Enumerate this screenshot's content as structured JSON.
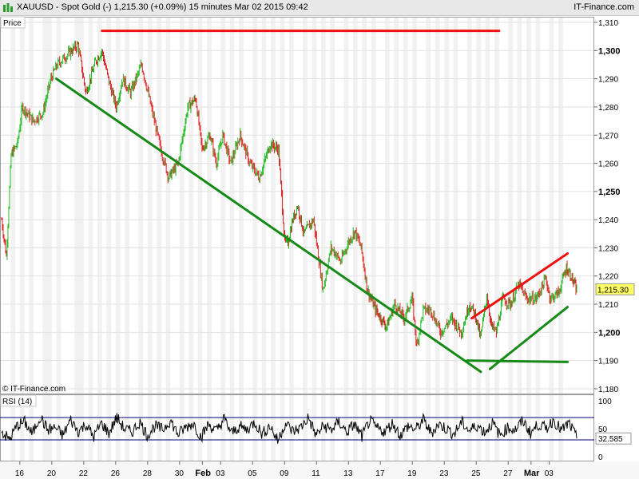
{
  "header": {
    "title": "XAUUSD - Spot Gold (-)    1,215.30 (+0.09%)    15 minutes  Mar 02 2015 09:42",
    "brand": "IT-Finance.com",
    "icon": "bar-chart-icon"
  },
  "colors": {
    "up": "#22bb22",
    "down": "#dd2222",
    "resistance": "#ee1111",
    "support": "#168a16",
    "last_price_badge": "#ffff66",
    "band_alt": "#f1f1f1",
    "rsi_line": "#000000",
    "rsi_level": "#000080"
  },
  "chart_data": [
    {
      "type": "line",
      "title": "XAUUSD - Spot Gold (-)",
      "panel_label": "Price",
      "timeframe": "15 minutes",
      "watermark": "© IT-Finance.com",
      "x_tick_labels": [
        "16",
        "20",
        "22",
        "26",
        "28",
        "30",
        "Feb",
        "03",
        "05",
        "09",
        "11",
        "13",
        "17",
        "19",
        "23",
        "25",
        "27",
        "Mar",
        "03"
      ],
      "ylim": [
        1178,
        1312
      ],
      "y_ticks": [
        1180,
        1190,
        1200,
        1210,
        1220,
        1230,
        1240,
        1250,
        1260,
        1270,
        1280,
        1290,
        1300,
        1310
      ],
      "y_tick_labels": [
        "1,180",
        "1,190",
        "1,200",
        "1,210",
        "1,220",
        "1,230",
        "1,240",
        "1,250",
        "1,260",
        "1,270",
        "1,280",
        "1,290",
        "1,300",
        "1,310"
      ],
      "bold_ticks": [
        "1,200",
        "1,250",
        "1,300"
      ],
      "last_price": 1215.3,
      "last_price_label": "1,215.30",
      "series": [
        {
          "style": "candlestick",
          "anchor_index": [
            0,
            6,
            12,
            20,
            26,
            40,
            52,
            62,
            70,
            88,
            96,
            106,
            118,
            126,
            134,
            144,
            152,
            162,
            176,
            188,
            200,
            210,
            222,
            234,
            244,
            252,
            262,
            270,
            278,
            288,
            300,
            312,
            324,
            338,
            348,
            356,
            360,
            366,
            372,
            380,
            392,
            404,
            414,
            420,
            426,
            436,
            444,
            452,
            460,
            470,
            484,
            494,
            506,
            516,
            522,
            530,
            540,
            552,
            566,
            578,
            588,
            596,
            602,
            610,
            616,
            622,
            630,
            640,
            650,
            660,
            672,
            684,
            690,
            700,
            710,
            716,
            722
          ],
          "anchor_close": [
            1240,
            1227,
            1263,
            1267,
            1280,
            1275,
            1278,
            1290,
            1295,
            1300,
            1302,
            1285,
            1296,
            1300,
            1290,
            1280,
            1290,
            1285,
            1295,
            1280,
            1265,
            1255,
            1260,
            1280,
            1283,
            1265,
            1270,
            1260,
            1270,
            1260,
            1270,
            1260,
            1255,
            1267,
            1265,
            1232,
            1232,
            1240,
            1245,
            1235,
            1240,
            1215,
            1230,
            1228,
            1225,
            1232,
            1236,
            1230,
            1215,
            1208,
            1202,
            1210,
            1205,
            1212,
            1195,
            1208,
            1208,
            1200,
            1205,
            1200,
            1210,
            1206,
            1198,
            1213,
            1202,
            1200,
            1212,
            1210,
            1217,
            1212,
            1212,
            1219,
            1212,
            1214,
            1223,
            1220,
            1215.3
          ]
        }
      ],
      "trendlines": [
        {
          "name": "resistance-top",
          "color": "resistance",
          "x": [
            22,
            109
          ],
          "y": [
            1307,
            1307
          ]
        },
        {
          "name": "downtrend",
          "color": "support",
          "x": [
            12,
            105
          ],
          "y": [
            1290,
            1186
          ]
        },
        {
          "name": "rising-resistance",
          "color": "resistance",
          "x": [
            103,
            124
          ],
          "y": [
            1205,
            1228
          ]
        },
        {
          "name": "rising-support",
          "color": "support",
          "x": [
            107,
            124
          ],
          "y": [
            1187,
            1209
          ]
        },
        {
          "name": "horizontal-support",
          "color": "support",
          "x": [
            102,
            124
          ],
          "y": [
            1190,
            1189.5
          ]
        }
      ]
    },
    {
      "type": "line",
      "title": "RSI (14)",
      "ylim": [
        0,
        100
      ],
      "y_tick_labels": [
        "100",
        "50",
        "0"
      ],
      "upper_level": 70,
      "lower_level": 30,
      "last_value": 32.585,
      "last_value_label": "32.585",
      "series": [
        {
          "name": "RSI (14)",
          "anchor_value": [
            45,
            30,
            55,
            62,
            40,
            72,
            48,
            52,
            38,
            66,
            45,
            58,
            35,
            60,
            42,
            70,
            50,
            44,
            62,
            38,
            55,
            48,
            65,
            40,
            52,
            60,
            35,
            58,
            45,
            68,
            42,
            54,
            48,
            62,
            40,
            56,
            28,
            60,
            45,
            52,
            70,
            38,
            55,
            48,
            62,
            44,
            58,
            36,
            64,
            50,
            45,
            60,
            38,
            55,
            48,
            66,
            42,
            58,
            50,
            40,
            62,
            46,
            56,
            44,
            60,
            38,
            52,
            48,
            64,
            42,
            58,
            50,
            66,
            46,
            60,
            32.585
          ]
        }
      ]
    }
  ]
}
